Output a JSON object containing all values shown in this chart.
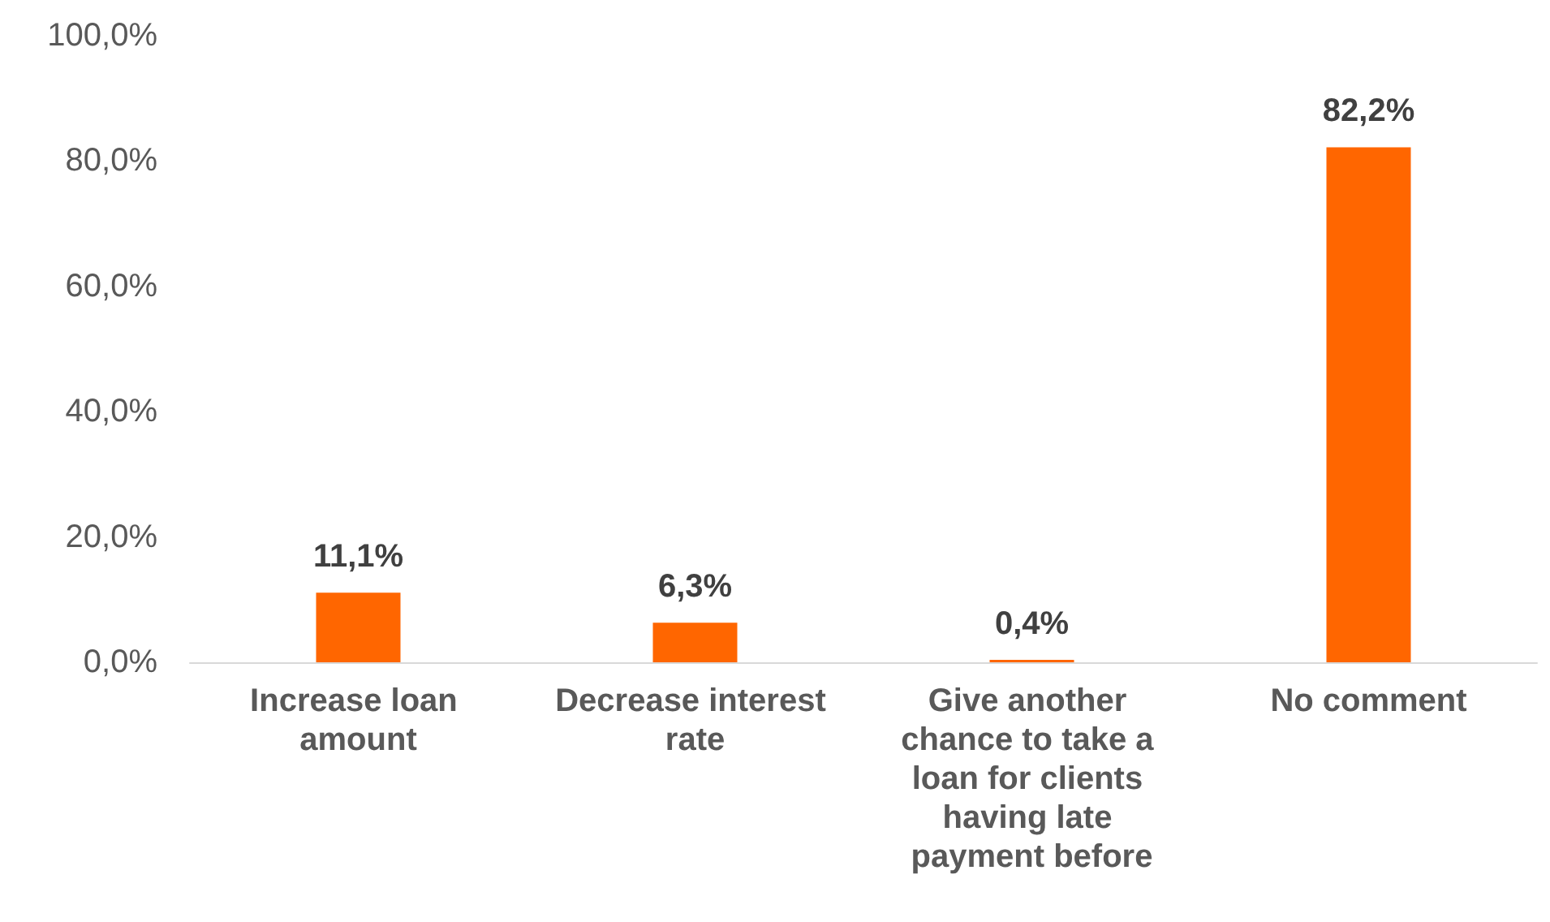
{
  "chart_data": {
    "type": "bar",
    "categories": [
      "Increase loan amount",
      "Decrease interest rate",
      "Give another chance to take a loan for clients having late payment before",
      "No comment"
    ],
    "values": [
      11.1,
      6.3,
      0.4,
      82.2
    ],
    "value_labels": [
      "11,1%",
      "6,3%",
      "0,4%",
      "82,2%"
    ],
    "color": "#ff6600",
    "ylim": [
      0,
      100
    ],
    "yticks": [
      {
        "value": 0,
        "label": "0,0%"
      },
      {
        "value": 20,
        "label": "20,0%"
      },
      {
        "value": 40,
        "label": "40,0%"
      },
      {
        "value": 60,
        "label": "60,0%"
      },
      {
        "value": 80,
        "label": "80,0%"
      },
      {
        "value": 100,
        "label": "100,0%"
      }
    ],
    "grid": false
  }
}
